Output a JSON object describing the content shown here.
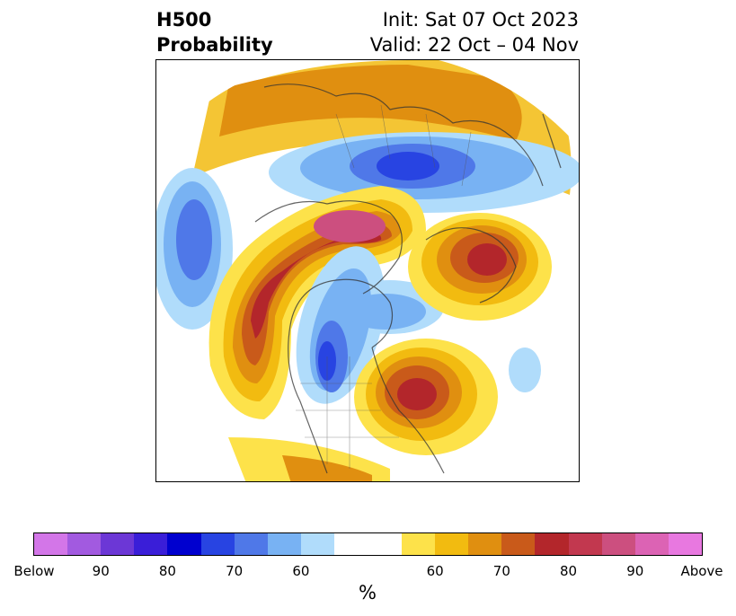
{
  "title": {
    "left_line1": "H500",
    "left_line2": "Probability",
    "right_line1": "Init: Sat 07 Oct 2023",
    "right_line2": "Valid: 22 Oct – 04 Nov"
  },
  "colorbar": {
    "unit_label": "%",
    "colors": [
      "#d376e8",
      "#a25ae0",
      "#6c37d6",
      "#3a1ed8",
      "#0000cf",
      "#2844e2",
      "#4f78e8",
      "#78b2f3",
      "#b0dcfb",
      "#ffffff",
      "#fde24a",
      "#f2bb10",
      "#e08f10",
      "#c95a1a",
      "#b3262b",
      "#c2384f",
      "#cc4f7f",
      "#dc63b4",
      "#e878e0"
    ],
    "ticks": [
      "Below",
      "90",
      "80",
      "70",
      "60",
      "60",
      "70",
      "80",
      "90",
      "Above"
    ]
  },
  "map": {
    "anomalies": [
      {
        "region": "western-us-canada ridge",
        "kind": "above",
        "level": "80-90"
      },
      {
        "region": "alaska-chukotka",
        "kind": "above",
        "level": "80-90"
      },
      {
        "region": "eastern-us",
        "kind": "above",
        "level": "80"
      },
      {
        "region": "scandinavia-europe",
        "kind": "above",
        "level": "80"
      },
      {
        "region": "central-north-america trough",
        "kind": "below",
        "level": "80"
      },
      {
        "region": "siberia-arctic",
        "kind": "below",
        "level": "80"
      },
      {
        "region": "north-pacific",
        "kind": "below",
        "level": "70"
      }
    ]
  }
}
